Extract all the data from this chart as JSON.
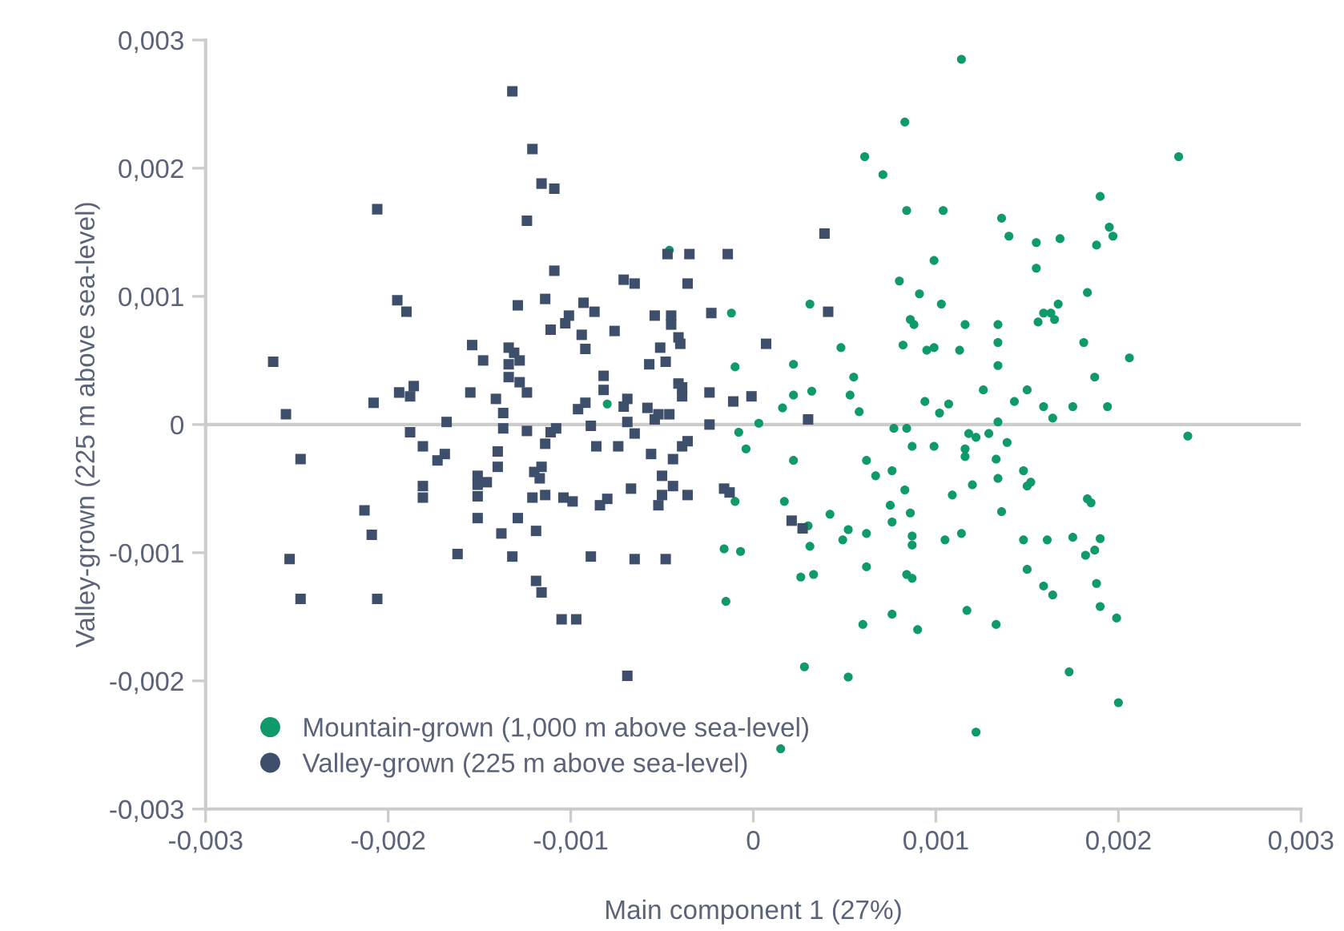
{
  "chart_data": {
    "type": "scatter",
    "xlabel": "Main component 1 (27%)",
    "ylabel": "Valley-grown (225 m above sea-level)",
    "xlim": [
      -0.003,
      0.003
    ],
    "ylim": [
      -0.003,
      0.003
    ],
    "xticks": [
      {
        "value": -0.003,
        "label": "-0,003"
      },
      {
        "value": -0.002,
        "label": "-0,002"
      },
      {
        "value": -0.001,
        "label": "-0,001"
      },
      0,
      {
        "value": 0.001,
        "label": "0,001"
      },
      {
        "value": 0.002,
        "label": "0,002"
      },
      {
        "value": 0.003,
        "label": "0,003"
      }
    ],
    "yticks": [
      {
        "value": -0.003,
        "label": "-0,003"
      },
      {
        "value": -0.002,
        "label": "-0,002"
      },
      {
        "value": -0.001,
        "label": "-0,001"
      },
      0,
      {
        "value": 0.001,
        "label": "0,001"
      },
      {
        "value": 0.002,
        "label": "0,002"
      },
      {
        "value": 0.003,
        "label": "0,003"
      }
    ],
    "ref_lines": [
      {
        "axis": "y",
        "value": 0,
        "color": "#cccccc"
      }
    ],
    "grid": false,
    "legend": "bottom left",
    "series": [
      {
        "name": "Mountain-grown (1,000 m above sea-level)",
        "color": "#0e9a6a",
        "marker": "circle",
        "x": [
          -0.00046,
          -0.00012,
          -0.0001,
          -0.0008,
          3e-05,
          -8e-05,
          -4e-05,
          -0.0001,
          -0.00016,
          -7e-05,
          -0.00015,
          0.00114,
          0.00083,
          0.00061,
          0.00071,
          0.00233,
          0.00084,
          0.00104,
          0.00136,
          0.0014,
          0.00155,
          0.00168,
          0.0019,
          0.00195,
          0.00197,
          0.00188,
          0.00099,
          0.00155,
          0.0008,
          0.00091,
          0.00183,
          0.00031,
          0.00103,
          0.00086,
          0.00088,
          0.00116,
          0.00134,
          0.00159,
          0.00163,
          0.00167,
          0.00165,
          0.00156,
          0.00134,
          0.00181,
          0.00206,
          0.00048,
          0.00082,
          0.00095,
          0.00099,
          0.00113,
          0.00134,
          0.00022,
          0.00055,
          0.00022,
          0.00032,
          0.00053,
          0.00016,
          0.00058,
          0.00126,
          0.0015,
          0.00187,
          0.00094,
          0.00107,
          0.00102,
          0.00143,
          0.00159,
          0.00175,
          0.00194,
          0.00164,
          0.00134,
          0.00077,
          0.00084,
          0.00238,
          0.00118,
          0.00122,
          0.00129,
          0.00139,
          0.00087,
          0.00099,
          0.00116,
          0.00116,
          0.00022,
          0.00062,
          0.00067,
          0.00076,
          0.00133,
          0.00134,
          0.00148,
          0.0015,
          0.00152,
          0.0012,
          0.00083,
          0.00109,
          0.00017,
          0.00075,
          0.00086,
          0.00136,
          0.00042,
          0.00076,
          0.00183,
          0.00185,
          0.0003,
          0.00052,
          0.00062,
          0.00049,
          0.00031,
          0.00087,
          0.00087,
          0.00105,
          0.00114,
          0.00148,
          0.00161,
          0.00175,
          0.0019,
          0.00182,
          0.00187,
          0.00026,
          0.00033,
          0.00062,
          0.00084,
          0.00087,
          0.0015,
          0.00159,
          0.00164,
          0.00188,
          0.0019,
          0.00199,
          0.0006,
          0.00076,
          0.0009,
          0.00117,
          0.00133,
          0.00028,
          0.00052,
          0.00173,
          0.002,
          0.00122,
          0.00015
        ],
        "values": [
          0.00136,
          0.00087,
          0.00045,
          0.00016,
          1e-05,
          -6e-05,
          -0.00019,
          -0.0006,
          -0.00097,
          -0.00099,
          -0.00138,
          0.00285,
          0.00236,
          0.00209,
          0.00195,
          0.00209,
          0.00167,
          0.00167,
          0.00161,
          0.00147,
          0.00142,
          0.00145,
          0.00178,
          0.00154,
          0.00147,
          0.0014,
          0.00128,
          0.00122,
          0.00112,
          0.00102,
          0.00103,
          0.00094,
          0.00094,
          0.00082,
          0.00078,
          0.00078,
          0.00078,
          0.00087,
          0.00087,
          0.00094,
          0.00082,
          0.0008,
          0.00064,
          0.00064,
          0.00052,
          0.0006,
          0.00062,
          0.00058,
          0.0006,
          0.00058,
          0.00046,
          0.00047,
          0.00037,
          0.00023,
          0.00026,
          0.00023,
          0.00013,
          0.0001,
          0.00027,
          0.00027,
          0.00037,
          0.00018,
          0.00016,
          9e-05,
          0.00018,
          0.00014,
          0.00014,
          0.00014,
          5e-05,
          2e-05,
          -3e-05,
          -3e-05,
          -9e-05,
          -7e-05,
          -0.0001,
          -7e-05,
          -0.00014,
          -0.00017,
          -0.00017,
          -0.00019,
          -0.00025,
          -0.00028,
          -0.00028,
          -0.0004,
          -0.00036,
          -0.00027,
          -0.00042,
          -0.00036,
          -0.00048,
          -0.00045,
          -0.00047,
          -0.00051,
          -0.00055,
          -0.0006,
          -0.00063,
          -0.00069,
          -0.00068,
          -0.0007,
          -0.00076,
          -0.00058,
          -0.00061,
          -0.00079,
          -0.00082,
          -0.00085,
          -0.0009,
          -0.00095,
          -0.00087,
          -0.00094,
          -0.0009,
          -0.00085,
          -0.0009,
          -0.0009,
          -0.00088,
          -0.00089,
          -0.00102,
          -0.00098,
          -0.00119,
          -0.00117,
          -0.00111,
          -0.00117,
          -0.0012,
          -0.00113,
          -0.00126,
          -0.00133,
          -0.00124,
          -0.00142,
          -0.00151,
          -0.00156,
          -0.00148,
          -0.0016,
          -0.00145,
          -0.00156,
          -0.00189,
          -0.00197,
          -0.00193,
          -0.00217,
          -0.0024,
          -0.00253
        ]
      },
      {
        "name": "Valley-grown (225 m above sea-level)",
        "color": "#3d4f6b",
        "marker": "square",
        "x": [
          -0.00132,
          -0.00121,
          -0.00116,
          -0.00109,
          -0.00206,
          -0.00124,
          -0.00047,
          -0.00035,
          -0.00014,
          -0.00109,
          -0.00071,
          -0.00065,
          -0.00036,
          -0.00195,
          -0.0019,
          -0.00129,
          -0.00114,
          -0.00093,
          -0.00101,
          -0.00103,
          -0.00087,
          -0.00111,
          -0.00054,
          -0.00045,
          -0.00045,
          -0.00023,
          -0.00076,
          -0.00094,
          -0.00041,
          -0.0004,
          -0.00092,
          -0.00051,
          -0.00154,
          -0.00134,
          -0.00131,
          -0.00148,
          -0.00128,
          -0.00134,
          -0.00057,
          -0.00048,
          -0.00263,
          -0.00082,
          -0.00134,
          -0.00128,
          -0.00041,
          -0.00039,
          -0.00039,
          -0.00194,
          -0.00186,
          -0.00188,
          -0.00155,
          -0.00124,
          -0.00082,
          -0.00024,
          -0.00141,
          -0.00208,
          -0.00092,
          -0.00069,
          -0.00071,
          -0.00011,
          -1e-05,
          -0.00096,
          -0.00137,
          -0.00058,
          -0.00052,
          -0.00046,
          -0.00054,
          -0.00256,
          -0.00168,
          -0.00089,
          -0.00069,
          -0.00024,
          0.00039,
          0.00041,
          7e-05,
          0.0003,
          -0.00188,
          -0.00137,
          -0.00124,
          -0.00111,
          -0.00108,
          -0.00065,
          -0.00248,
          -0.00181,
          -0.00169,
          -0.00173,
          -0.0014,
          -0.0014,
          -0.00114,
          -0.00086,
          -0.00074,
          -0.00056,
          -0.00044,
          -0.00039,
          -0.00036,
          -0.0012,
          -0.00116,
          -0.00117,
          -0.00151,
          -0.00151,
          -0.00146,
          -0.00181,
          -0.00181,
          -0.00151,
          -0.00121,
          -0.00114,
          -0.00104,
          -0.00099,
          -0.00084,
          -0.0008,
          -0.00067,
          -0.0005,
          -0.0005,
          -0.00044,
          -0.00036,
          -0.00052,
          -0.00016,
          -0.00013,
          0.00021,
          0.00027,
          -0.00213,
          -0.00209,
          -0.00151,
          -0.00129,
          -0.00138,
          -0.00119,
          -0.00254,
          -0.00162,
          -0.00132,
          -0.00089,
          -0.00065,
          -0.00048,
          -0.00248,
          -0.00206,
          -0.00119,
          -0.00116,
          -0.00105,
          -0.00097,
          -0.00069
        ],
        "values": [
          0.0026,
          0.00215,
          0.00188,
          0.00184,
          0.00168,
          0.00159,
          0.00133,
          0.00133,
          0.00133,
          0.0012,
          0.00113,
          0.0011,
          0.0011,
          0.00097,
          0.00088,
          0.00093,
          0.00098,
          0.00095,
          0.00085,
          0.00079,
          0.00088,
          0.00074,
          0.00085,
          0.00085,
          0.00078,
          0.00087,
          0.00073,
          0.0007,
          0.00068,
          0.00063,
          0.00059,
          0.0006,
          0.00062,
          0.0006,
          0.00056,
          0.0005,
          0.0005,
          0.00047,
          0.00047,
          0.00049,
          0.00049,
          0.00038,
          0.00037,
          0.00033,
          0.00032,
          0.00029,
          0.00022,
          0.00025,
          0.0003,
          0.00022,
          0.00025,
          0.00025,
          0.00027,
          0.00025,
          0.0002,
          0.00017,
          0.00017,
          0.0002,
          0.00014,
          0.00018,
          0.00022,
          0.00012,
          9e-05,
          0.00013,
          8e-05,
          8e-05,
          4e-05,
          8e-05,
          2e-05,
          -1e-05,
          2e-05,
          0.0,
          0.00149,
          0.00088,
          0.00063,
          4e-05,
          -6e-05,
          -3e-05,
          -5e-05,
          -6e-05,
          -3e-05,
          -7e-05,
          -0.00027,
          -0.00017,
          -0.00023,
          -0.00028,
          -0.00021,
          -0.00033,
          -0.00015,
          -0.00017,
          -0.00017,
          -0.00023,
          -0.00027,
          -0.00017,
          -0.00013,
          -0.00037,
          -0.00033,
          -0.00042,
          -0.0004,
          -0.00047,
          -0.00045,
          -0.00048,
          -0.00057,
          -0.00056,
          -0.00057,
          -0.00055,
          -0.00057,
          -0.0006,
          -0.00063,
          -0.00058,
          -0.0005,
          -0.0004,
          -0.00055,
          -0.00048,
          -0.00055,
          -0.00063,
          -0.0005,
          -0.00053,
          -0.00075,
          -0.00081,
          -0.00067,
          -0.00086,
          -0.00073,
          -0.00073,
          -0.00085,
          -0.00083,
          -0.00105,
          -0.00101,
          -0.00103,
          -0.00103,
          -0.00105,
          -0.00105,
          -0.00136,
          -0.00136,
          -0.00122,
          -0.00131,
          -0.00152,
          -0.00152,
          -0.00196
        ]
      }
    ]
  }
}
